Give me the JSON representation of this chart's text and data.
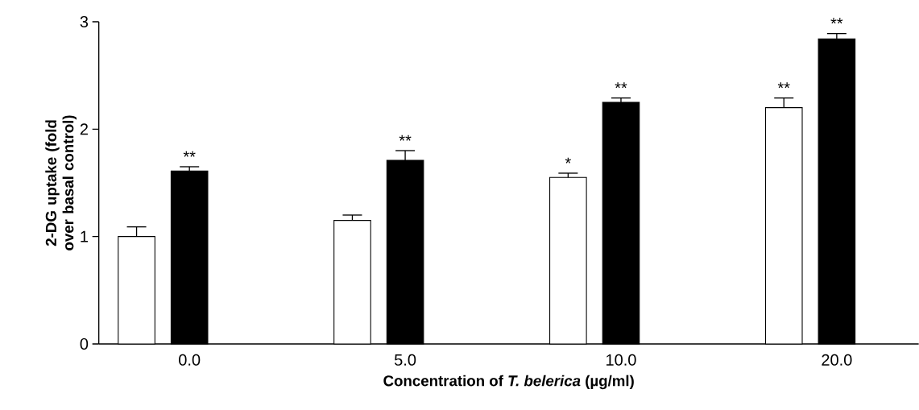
{
  "chart_data": {
    "type": "bar",
    "xlabel": "Concentration of *T. belerica* (µg/ml)",
    "ylabel": "2-DG uptake (fold over basal control)",
    "categories": [
      "0.0",
      "5.0",
      "10.0",
      "20.0"
    ],
    "series": [
      {
        "color": "#ffffff",
        "values": [
          1.0,
          1.15,
          1.55,
          2.2
        ],
        "errors": [
          0.09,
          0.05,
          0.04,
          0.09
        ]
      },
      {
        "color": "#000000",
        "values": [
          1.61,
          1.71,
          2.25,
          2.84
        ],
        "errors": [
          0.04,
          0.09,
          0.04,
          0.05
        ]
      }
    ],
    "ylim": [
      0,
      3
    ],
    "yticks": [
      0,
      1,
      2,
      3
    ],
    "grid": false,
    "annotations": [
      {
        "text": "**",
        "x": "0.0",
        "y": 1.61
      },
      {
        "text": "**",
        "x": "5.0",
        "y": 1.71
      },
      "*",
      {
        "text": "**",
        "x": "10.0",
        "y": 2.25
      },
      "**",
      {
        "text": "**",
        "x": "20.0",
        "y": 2.84
      }
    ]
  }
}
